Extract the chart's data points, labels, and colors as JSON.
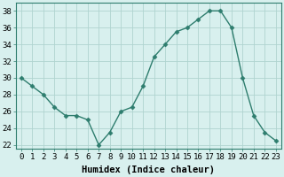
{
  "x": [
    0,
    1,
    2,
    3,
    4,
    5,
    6,
    7,
    8,
    9,
    10,
    11,
    12,
    13,
    14,
    15,
    16,
    17,
    18,
    19,
    20,
    21,
    22,
    23
  ],
  "y": [
    30,
    29,
    28,
    26.5,
    25.5,
    25.5,
    25,
    22,
    23.5,
    26,
    26.5,
    29,
    32.5,
    34,
    35.5,
    36,
    37,
    38,
    38,
    36,
    30,
    25.5,
    23.5,
    22.5
  ],
  "line_color": "#2e7d6e",
  "marker": "D",
  "marker_size": 2.5,
  "bg_color": "#d8f0ee",
  "grid_color": "#b0d4d0",
  "xlabel": "Humidex (Indice chaleur)",
  "xlim": [
    -0.5,
    23.5
  ],
  "ylim": [
    21.5,
    39
  ],
  "yticks": [
    22,
    24,
    26,
    28,
    30,
    32,
    34,
    36,
    38
  ],
  "xticks": [
    0,
    1,
    2,
    3,
    4,
    5,
    6,
    7,
    8,
    9,
    10,
    11,
    12,
    13,
    14,
    15,
    16,
    17,
    18,
    19,
    20,
    21,
    22,
    23
  ],
  "tick_fontsize": 6.5,
  "xlabel_fontsize": 7.5
}
